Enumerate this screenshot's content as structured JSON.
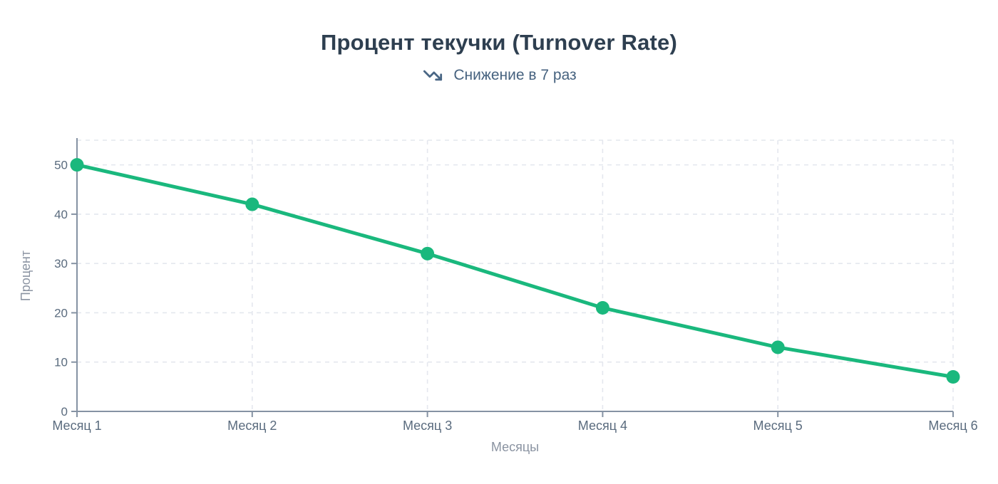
{
  "header": {
    "title": "Процент текучки (Turnover Rate)",
    "subtitle": "Снижение в 7 раз"
  },
  "chart_data": {
    "type": "line",
    "title": "Процент текучки (Turnover Rate)",
    "subtitle": "Снижение в 7 раз",
    "categories": [
      "Месяц 1",
      "Месяц 2",
      "Месяц 3",
      "Месяц 4",
      "Месяц 5",
      "Месяц 6"
    ],
    "values": [
      50,
      42,
      32,
      21,
      13,
      7
    ],
    "xlabel": "Месяцы",
    "ylabel": "Процент",
    "ylim": [
      0,
      55
    ],
    "yticks": [
      0,
      10,
      20,
      30,
      40,
      50
    ],
    "grid": true,
    "grid_style": "dashed",
    "legend": false,
    "marker": "circle",
    "colors": {
      "line": "#1ab87d",
      "marker": "#1ab87d",
      "title": "#2e3f50",
      "subtitle": "#46627f",
      "subtitle_icon": "#4a6785",
      "tick_label": "#5a6b7e",
      "axis_title": "#8a93a1",
      "axis_line": "#8592a3",
      "gridline": "#e4e7ee",
      "background": "#ffffff"
    }
  }
}
